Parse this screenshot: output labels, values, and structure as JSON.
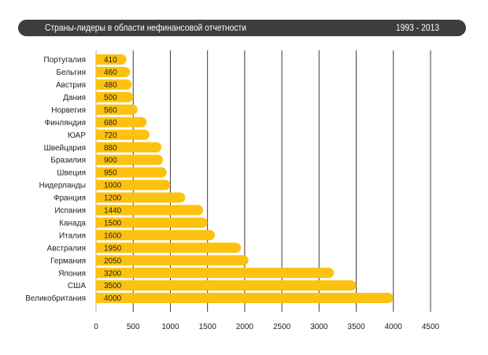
{
  "chart_data": {
    "type": "bar",
    "orientation": "horizontal",
    "title": "Страны-лидеры в области нефинансовой отчетности",
    "period": "1993 - 2013",
    "categories": [
      "Португалия",
      "Бельгия",
      "Австрия",
      "Дания",
      "Норвегия",
      "Финляндия",
      "ЮАР",
      "Швейцария",
      "Бразилия",
      "Швеция",
      "Нидерланды",
      "Франция",
      "Испания",
      "Канада",
      "Италия",
      "Австралия",
      "Германия",
      "Япония",
      "США",
      "Великобритания"
    ],
    "values": [
      410,
      460,
      480,
      500,
      560,
      680,
      720,
      880,
      900,
      950,
      1000,
      1200,
      1440,
      1500,
      1600,
      1950,
      2050,
      3200,
      3500,
      4000
    ],
    "value_labels": [
      "410",
      "460",
      "480",
      "500",
      "560",
      "680",
      "720",
      "880",
      "900",
      "950",
      "1000",
      "1200",
      "1440",
      "1500",
      "1600",
      "1950",
      "2050",
      "3200",
      "3500",
      "4000"
    ],
    "x_ticks": [
      "0",
      "500",
      "1000",
      "1500",
      "2000",
      "2500",
      "3000",
      "3500",
      "4000",
      "4500"
    ],
    "xlim": [
      0,
      4500
    ],
    "grid": "vertical",
    "legend": "none",
    "bar_color": "#fdc10f",
    "header_color": "#3d3d3d"
  }
}
